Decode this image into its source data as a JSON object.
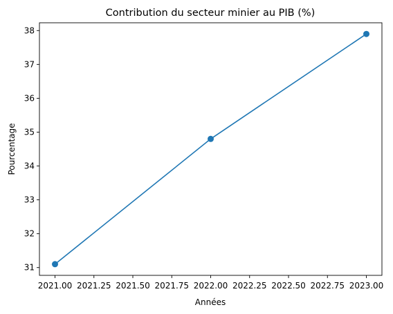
{
  "chart_data": {
    "type": "line",
    "title": "Contribution du secteur minier au PIB (%)",
    "xlabel": "Années",
    "ylabel": "Pourcentage",
    "x": [
      2021,
      2022,
      2023
    ],
    "series": [
      {
        "values": [
          31.1,
          34.8,
          37.9
        ],
        "color": "#1f77b4",
        "marker": "circle"
      }
    ],
    "xlim": [
      2020.9,
      2023.1
    ],
    "ylim": [
      30.77,
      38.23
    ],
    "xticks": [
      2021.0,
      2021.25,
      2021.5,
      2021.75,
      2022.0,
      2022.25,
      2022.5,
      2022.75,
      2023.0
    ],
    "xtick_labels": [
      "2021.00",
      "2021.25",
      "2021.50",
      "2021.75",
      "2022.00",
      "2022.25",
      "2022.50",
      "2022.75",
      "2023.00"
    ],
    "yticks": [
      31,
      32,
      33,
      34,
      35,
      36,
      37,
      38
    ],
    "ytick_labels": [
      "31",
      "32",
      "33",
      "34",
      "35",
      "36",
      "37",
      "38"
    ],
    "grid": false,
    "legend": false
  }
}
